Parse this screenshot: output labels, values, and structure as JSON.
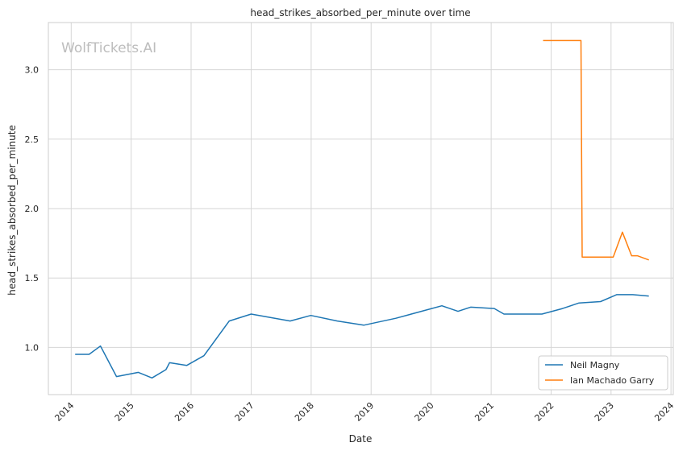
{
  "chart_data": {
    "type": "line",
    "title": "head_strikes_absorbed_per_minute over time",
    "xlabel": "Date",
    "ylabel": "head_strikes_absorbed_per_minute",
    "watermark": "WolfTickets.AI",
    "grid": true,
    "legend_position": "lower-right",
    "xlim": [
      "2013-08-15",
      "2024-01-15"
    ],
    "ylim": [
      0.66,
      3.34
    ],
    "x_ticks": [
      "2014",
      "2015",
      "2016",
      "2017",
      "2018",
      "2019",
      "2020",
      "2021",
      "2022",
      "2023",
      "2024"
    ],
    "y_ticks": [
      "1.0",
      "1.5",
      "2.0",
      "2.5",
      "3.0"
    ],
    "series": [
      {
        "name": "Neil Magny",
        "color": "#1f77b4",
        "x": [
          "2014-01-25",
          "2014-04-20",
          "2014-06-28",
          "2014-10-04",
          "2015-02-14",
          "2015-05-08",
          "2015-08-01",
          "2015-08-23",
          "2015-12-05",
          "2016-03-19",
          "2016-08-20",
          "2017-01-01",
          "2017-08-26",
          "2017-12-30",
          "2018-06-09",
          "2018-11-17",
          "2019-06-01",
          "2020-03-07",
          "2020-06-13",
          "2020-08-29",
          "2021-01-20",
          "2021-03-20",
          "2021-11-06",
          "2022-03-12",
          "2022-06-20",
          "2022-10-29",
          "2023-02-04",
          "2023-05-13",
          "2023-08-19"
        ],
        "y": [
          0.95,
          0.95,
          1.01,
          0.79,
          0.82,
          0.78,
          0.84,
          0.89,
          0.87,
          0.94,
          1.19,
          1.24,
          1.19,
          1.23,
          1.19,
          1.16,
          1.21,
          1.3,
          1.26,
          1.29,
          1.28,
          1.24,
          1.24,
          1.28,
          1.32,
          1.33,
          1.38,
          1.38,
          1.37
        ]
      },
      {
        "name": "Ian Machado Garry",
        "color": "#ff7f0e",
        "x": [
          "2021-11-13",
          "2022-07-02",
          "2022-07-09",
          "2023-01-14",
          "2023-03-11",
          "2023-05-06",
          "2023-06-10",
          "2023-08-19"
        ],
        "y": [
          3.21,
          3.21,
          1.65,
          1.65,
          1.83,
          1.66,
          1.66,
          1.63
        ],
        "step": true
      }
    ]
  }
}
